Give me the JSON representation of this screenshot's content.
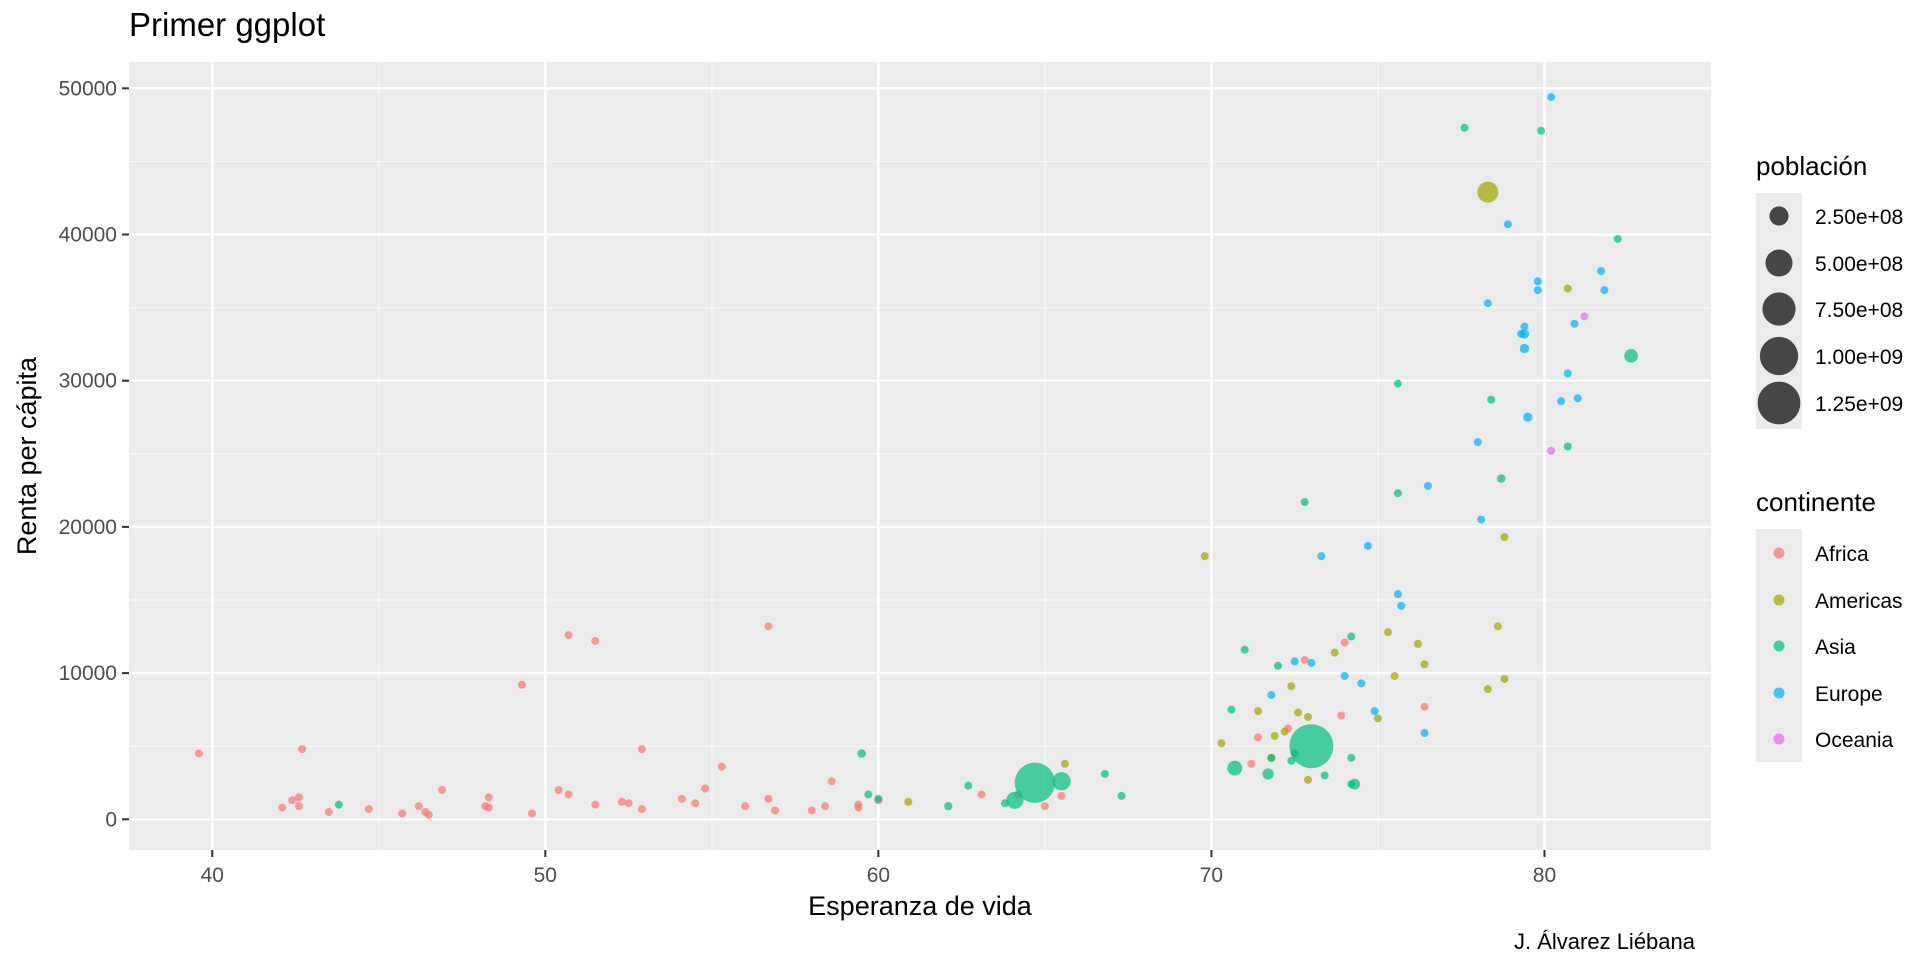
{
  "chart_data": {
    "type": "scatter",
    "title": "Primer ggplot",
    "xlabel": "Esperanza de vida",
    "ylabel": "Renta per cápita",
    "caption": "J. Álvarez Liébana",
    "xlim": [
      37.5,
      85
    ],
    "ylim": [
      -2100,
      51800
    ],
    "x_ticks": [
      40,
      50,
      60,
      70,
      80
    ],
    "y_ticks": [
      0,
      10000,
      20000,
      30000,
      40000,
      50000
    ],
    "grid": true,
    "legend_position": "right",
    "size_legend": {
      "title": "población",
      "values": [
        250000000,
        500000000,
        750000000,
        1000000000,
        1250000000
      ],
      "labels": [
        "2.50e+08",
        "5.00e+08",
        "7.50e+08",
        "1.00e+09",
        "1.25e+09"
      ]
    },
    "color_legend": {
      "title": "continente",
      "entries": [
        {
          "name": "Africa",
          "color": "#F8766D"
        },
        {
          "name": "Americas",
          "color": "#A3A500"
        },
        {
          "name": "Asia",
          "color": "#00BF7D"
        },
        {
          "name": "Europe",
          "color": "#00B0F6"
        },
        {
          "name": "Oceania",
          "color": "#E76BF3"
        }
      ]
    },
    "series": [
      {
        "name": "Africa",
        "color": "#F8766D",
        "points": [
          [
            39.6,
            4500,
            5
          ],
          [
            42.1,
            800,
            18
          ],
          [
            42.4,
            1300,
            10
          ],
          [
            42.6,
            1500,
            5
          ],
          [
            42.6,
            900,
            12
          ],
          [
            42.7,
            4800,
            14
          ],
          [
            43.5,
            500,
            10
          ],
          [
            44.7,
            700,
            6
          ],
          [
            45.7,
            400,
            11
          ],
          [
            46.2,
            900,
            5
          ],
          [
            46.4,
            500,
            7
          ],
          [
            46.5,
            300,
            25
          ],
          [
            46.9,
            2000,
            35
          ],
          [
            48.2,
            900,
            8
          ],
          [
            48.3,
            800,
            12
          ],
          [
            48.3,
            1500,
            12
          ],
          [
            49.3,
            9200,
            10
          ],
          [
            49.6,
            400,
            12
          ],
          [
            50.4,
            2000,
            9
          ],
          [
            50.7,
            1700,
            12
          ],
          [
            50.7,
            12600,
            4
          ],
          [
            51.5,
            12200,
            2
          ],
          [
            51.5,
            1000,
            20
          ],
          [
            52.3,
            1200,
            6
          ],
          [
            52.5,
            1100,
            9
          ],
          [
            52.9,
            700,
            20
          ],
          [
            52.9,
            4800,
            2
          ],
          [
            54.1,
            1400,
            11
          ],
          [
            54.5,
            1100,
            10
          ],
          [
            54.8,
            2100,
            4
          ],
          [
            55.3,
            3600,
            11
          ],
          [
            56.0,
            900,
            5
          ],
          [
            56.7,
            1400,
            10
          ],
          [
            56.7,
            13200,
            1
          ],
          [
            56.9,
            600,
            12
          ],
          [
            58.0,
            600,
            10
          ],
          [
            58.4,
            900,
            5
          ],
          [
            58.6,
            2600,
            20
          ],
          [
            59.4,
            1000,
            3
          ],
          [
            59.4,
            800,
            5
          ],
          [
            60.0,
            1300,
            12
          ],
          [
            63.1,
            1700,
            4
          ],
          [
            64.2,
            1700,
            4
          ],
          [
            65.0,
            900,
            5
          ],
          [
            65.5,
            1600,
            6
          ],
          [
            71.2,
            3800,
            6
          ],
          [
            71.4,
            5600,
            32
          ],
          [
            72.3,
            6200,
            25
          ],
          [
            72.8,
            10900,
            1
          ],
          [
            73.9,
            7100,
            8
          ],
          [
            74.0,
            12100,
            3
          ],
          [
            76.4,
            7700,
            3
          ]
        ]
      },
      {
        "name": "Americas",
        "color": "#A3A500",
        "points": [
          [
            60.9,
            1200,
            3
          ],
          [
            65.6,
            3800,
            3
          ],
          [
            69.8,
            18000,
            1
          ],
          [
            70.3,
            5200,
            3
          ],
          [
            71.4,
            7400,
            3
          ],
          [
            71.8,
            4200,
            11
          ],
          [
            71.9,
            5700,
            5
          ],
          [
            72.2,
            6000,
            3
          ],
          [
            72.4,
            9100,
            10
          ],
          [
            72.6,
            7300,
            3
          ],
          [
            72.9,
            2700,
            3
          ],
          [
            72.9,
            7000,
            3
          ],
          [
            73.7,
            11400,
            3
          ],
          [
            75.0,
            6900,
            3
          ],
          [
            75.3,
            12800,
            3
          ],
          [
            75.5,
            9800,
            1
          ],
          [
            76.2,
            12000,
            8
          ],
          [
            76.4,
            10600,
            3
          ],
          [
            78.3,
            42900,
            301
          ],
          [
            78.3,
            8900,
            5
          ],
          [
            78.6,
            13200,
            2
          ],
          [
            78.8,
            19300,
            1
          ],
          [
            78.8,
            9600,
            1
          ],
          [
            80.7,
            36300,
            33
          ]
        ]
      },
      {
        "name": "Asia",
        "color": "#00BF7D",
        "points": [
          [
            43.8,
            1000,
            31
          ],
          [
            59.5,
            4500,
            50
          ],
          [
            59.7,
            1700,
            5
          ],
          [
            60.0,
            1400,
            30
          ],
          [
            62.1,
            900,
            47
          ],
          [
            62.7,
            2300,
            10
          ],
          [
            63.8,
            1100,
            1
          ],
          [
            64.1,
            1300,
            200
          ],
          [
            64.7,
            2500,
            1110
          ],
          [
            65.5,
            2600,
            230
          ],
          [
            66.8,
            3100,
            1
          ],
          [
            67.3,
            1600,
            28
          ],
          [
            70.6,
            7500,
            5
          ],
          [
            70.7,
            3500,
            150
          ],
          [
            71.0,
            11600,
            3
          ],
          [
            71.7,
            3100,
            85
          ],
          [
            71.8,
            4200,
            4
          ],
          [
            72.0,
            10500,
            1
          ],
          [
            72.4,
            4000,
            4
          ],
          [
            72.5,
            4500,
            5
          ],
          [
            72.8,
            21700,
            1
          ],
          [
            73.0,
            5000,
            1320
          ],
          [
            73.4,
            3000,
            4
          ],
          [
            74.2,
            4200,
            5
          ],
          [
            74.2,
            12500,
            3
          ],
          [
            74.2,
            2400,
            4
          ],
          [
            74.3,
            2400,
            80
          ],
          [
            75.6,
            29800,
            1
          ],
          [
            75.6,
            22300,
            1
          ],
          [
            77.6,
            47300,
            2
          ],
          [
            78.4,
            28700,
            7
          ],
          [
            78.7,
            23300,
            49
          ],
          [
            79.9,
            47100,
            7
          ],
          [
            80.7,
            25500,
            1
          ],
          [
            82.2,
            39700,
            5
          ],
          [
            82.6,
            31700,
            127
          ]
        ]
      },
      {
        "name": "Europe",
        "color": "#00B0F6",
        "points": [
          [
            71.8,
            8500,
            38
          ],
          [
            72.5,
            10800,
            9
          ],
          [
            73.0,
            10700,
            4
          ],
          [
            73.3,
            18000,
            2
          ],
          [
            74.0,
            9800,
            7
          ],
          [
            74.5,
            9300,
            4
          ],
          [
            74.7,
            18700,
            3
          ],
          [
            74.9,
            7400,
            10
          ],
          [
            75.6,
            15400,
            22
          ],
          [
            75.7,
            14600,
            1
          ],
          [
            76.4,
            5900,
            2
          ],
          [
            76.5,
            22800,
            3
          ],
          [
            78.0,
            25800,
            3
          ],
          [
            78.1,
            20500,
            11
          ],
          [
            78.3,
            35300,
            10
          ],
          [
            78.9,
            40700,
            3
          ],
          [
            79.3,
            33200,
            10
          ],
          [
            79.4,
            33700,
            10
          ],
          [
            79.4,
            32200,
            61
          ],
          [
            79.4,
            33200,
            60
          ],
          [
            79.5,
            27500,
            58
          ],
          [
            79.8,
            36200,
            9
          ],
          [
            79.8,
            36800,
            5
          ],
          [
            80.2,
            49400,
            4
          ],
          [
            80.5,
            28600,
            40
          ],
          [
            80.7,
            30500,
            10
          ],
          [
            80.9,
            33900,
            8
          ],
          [
            81.0,
            28800,
            45
          ],
          [
            81.7,
            37500,
            1
          ],
          [
            81.8,
            36200,
            7
          ]
        ]
      },
      {
        "name": "Oceania",
        "color": "#E76BF3",
        "points": [
          [
            80.2,
            25200,
            4
          ],
          [
            81.2,
            34400,
            20
          ]
        ]
      }
    ]
  }
}
